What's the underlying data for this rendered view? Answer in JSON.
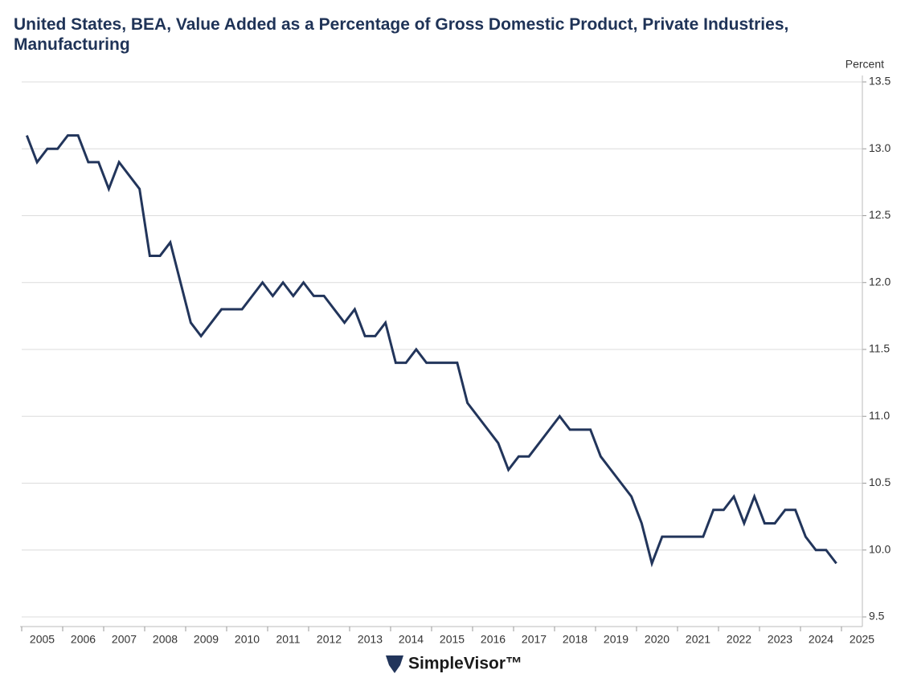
{
  "chart_data": {
    "type": "line",
    "title": "United States, BEA, Value Added as a Percentage of Gross Domestic Product, Private Industries, Manufacturing",
    "y_label": "Percent",
    "logo_text": "SimpleVisor™",
    "x": [
      2005.125,
      2005.375,
      2005.625,
      2005.875,
      2006.125,
      2006.375,
      2006.625,
      2006.875,
      2007.125,
      2007.375,
      2007.625,
      2007.875,
      2008.125,
      2008.375,
      2008.625,
      2008.875,
      2009.125,
      2009.375,
      2009.625,
      2009.875,
      2010.125,
      2010.375,
      2010.625,
      2010.875,
      2011.125,
      2011.375,
      2011.625,
      2011.875,
      2012.125,
      2012.375,
      2012.625,
      2012.875,
      2013.125,
      2013.375,
      2013.625,
      2013.875,
      2014.125,
      2014.375,
      2014.625,
      2014.875,
      2015.125,
      2015.375,
      2015.625,
      2015.875,
      2016.125,
      2016.375,
      2016.625,
      2016.875,
      2017.125,
      2017.375,
      2017.625,
      2017.875,
      2018.125,
      2018.375,
      2018.625,
      2018.875,
      2019.125,
      2019.375,
      2019.625,
      2019.875,
      2020.125,
      2020.375,
      2020.625,
      2020.875,
      2021.125,
      2021.375,
      2021.625,
      2021.875,
      2022.125,
      2022.375,
      2022.625,
      2022.875,
      2023.125,
      2023.375,
      2023.625,
      2023.875,
      2024.125,
      2024.375,
      2024.625,
      2024.875
    ],
    "series": [
      {
        "name": "Manufacturing",
        "color": "#22355b",
        "values": [
          13.1,
          12.9,
          13.0,
          13.0,
          13.1,
          13.1,
          12.9,
          12.9,
          12.7,
          12.9,
          12.8,
          12.7,
          12.2,
          12.2,
          12.3,
          12.0,
          11.7,
          11.6,
          11.7,
          11.8,
          11.8,
          11.8,
          11.9,
          12.0,
          11.9,
          12.0,
          11.9,
          12.0,
          11.9,
          11.9,
          11.8,
          11.7,
          11.8,
          11.6,
          11.6,
          11.7,
          11.4,
          11.4,
          11.5,
          11.4,
          11.4,
          11.4,
          11.4,
          11.1,
          11.0,
          10.9,
          10.8,
          10.6,
          10.7,
          10.7,
          10.8,
          10.9,
          11.0,
          10.9,
          10.9,
          10.9,
          10.7,
          10.6,
          10.5,
          10.4,
          10.2,
          9.9,
          10.1,
          10.1,
          10.1,
          10.1,
          10.1,
          10.3,
          10.3,
          10.4,
          10.2,
          10.4,
          10.2,
          10.2,
          10.3,
          10.3,
          10.1,
          10.0,
          10.0,
          9.9
        ]
      }
    ],
    "xlim": [
      2005,
      2025
    ],
    "xticks": [
      2005,
      2006,
      2007,
      2008,
      2009,
      2010,
      2011,
      2012,
      2013,
      2014,
      2015,
      2016,
      2017,
      2018,
      2019,
      2020,
      2021,
      2022,
      2023,
      2024,
      2025
    ],
    "ylim": [
      9.5,
      13.5
    ],
    "yticks": [
      {
        "value": 9.5,
        "label": "9.5"
      },
      {
        "value": 10,
        "label": "10.0"
      },
      {
        "value": 10.5,
        "label": "10.5"
      },
      {
        "value": 11,
        "label": "11.0"
      },
      {
        "value": 11.5,
        "label": "11.5"
      },
      {
        "value": 12,
        "label": "12.0"
      },
      {
        "value": 12.5,
        "label": "12.5"
      },
      {
        "value": 13,
        "label": "13.0"
      },
      {
        "value": 13.5,
        "label": "13.5"
      }
    ],
    "grid": true
  }
}
